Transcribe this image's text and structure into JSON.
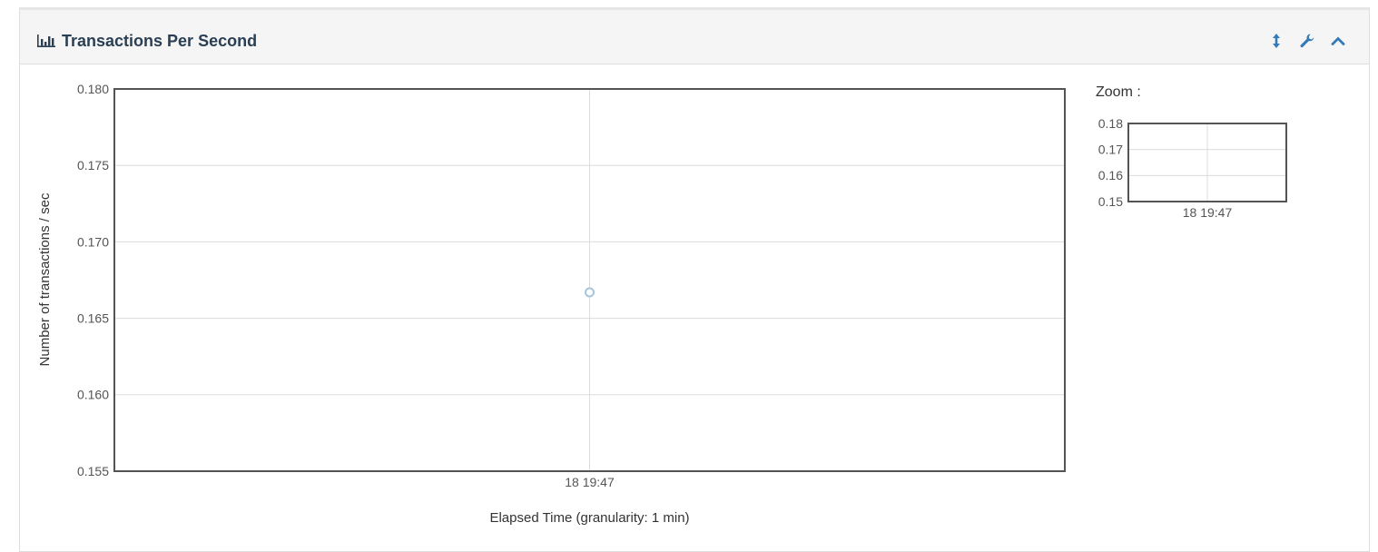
{
  "panel": {
    "title": "Transactions Per Second",
    "icons": {
      "title": "bar-chart-icon",
      "resize": "resize-vertical-icon",
      "settings": "wrench-icon",
      "collapse": "chevron-up-icon"
    }
  },
  "colors": {
    "accent": "#337ab7",
    "title": "#2a3f54",
    "point": "#a7c4de"
  },
  "chart_data": {
    "type": "scatter",
    "title": "",
    "xlabel": "Elapsed Time (granularity: 1 min)",
    "ylabel": "Number of transactions / sec",
    "x_ticks": [
      "18 19:47"
    ],
    "y_ticks": [
      "0.180",
      "0.175",
      "0.170",
      "0.165",
      "0.160",
      "0.155"
    ],
    "ylim": [
      0.155,
      0.18
    ],
    "grid": true,
    "series": [
      {
        "points": [
          {
            "x": "18 19:47",
            "y": 0.1667
          }
        ]
      }
    ]
  },
  "zoom": {
    "label": "Zoom :",
    "y_ticks": [
      "0.18",
      "0.17",
      "0.16",
      "0.15"
    ],
    "x_ticks": [
      "18 19:47"
    ],
    "ylim": [
      0.15,
      0.18
    ]
  }
}
